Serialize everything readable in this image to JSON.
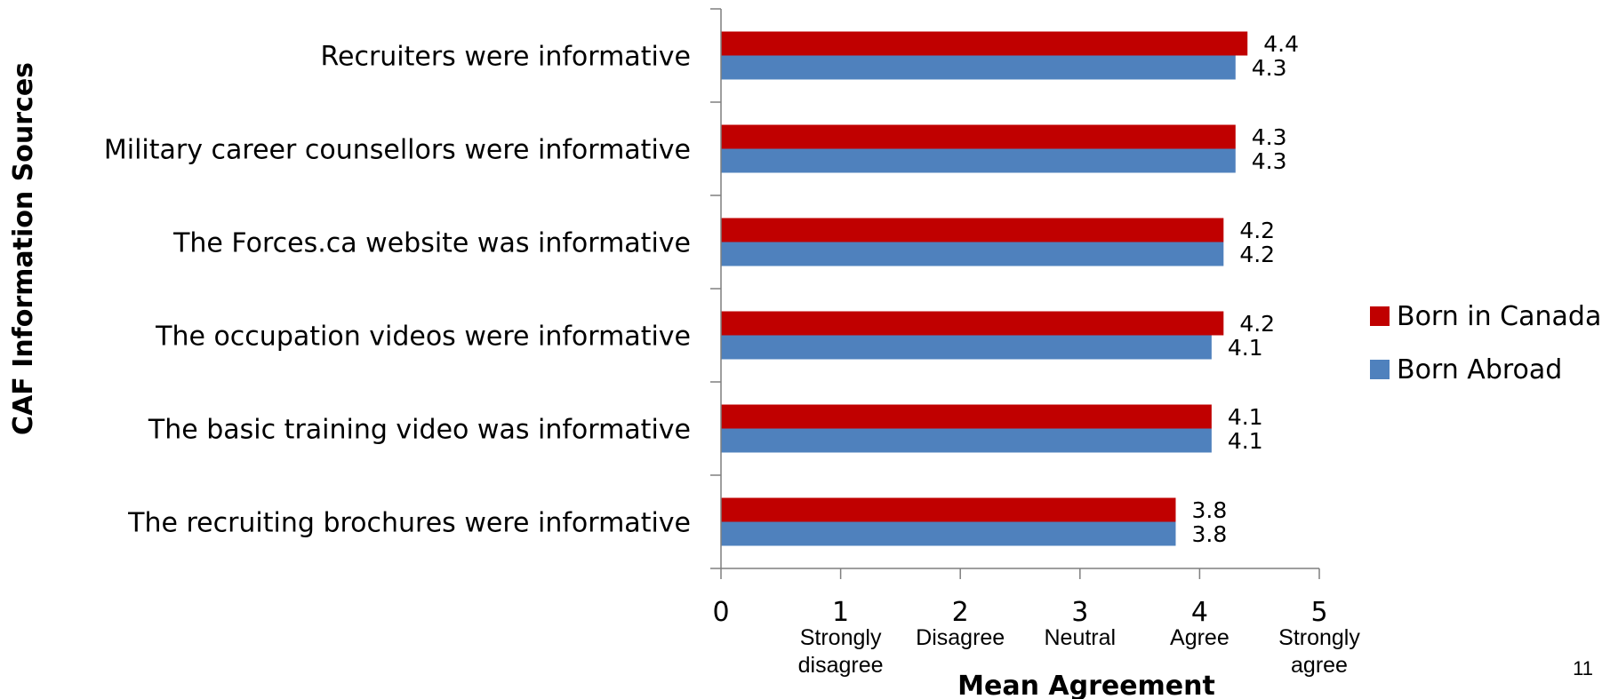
{
  "chart_data": {
    "type": "bar",
    "orientation": "horizontal",
    "categories": [
      "Recruiters were informative",
      "Military career counsellors were informative",
      "The Forces.ca website was informative",
      "The occupation videos were informative",
      "The basic training video was informative",
      "The recruiting brochures were informative"
    ],
    "series": [
      {
        "name": "Born in Canada",
        "color": "#c00000",
        "values": [
          4.4,
          4.3,
          4.2,
          4.2,
          4.1,
          3.8
        ]
      },
      {
        "name": "Born Abroad",
        "color": "#4f81bd",
        "values": [
          4.3,
          4.3,
          4.2,
          4.1,
          4.1,
          3.8
        ]
      }
    ],
    "xlim": [
      0,
      5
    ],
    "xticks": [
      {
        "value": "0",
        "label": []
      },
      {
        "value": "1",
        "label": [
          "Strongly",
          "disagree"
        ]
      },
      {
        "value": "2",
        "label": [
          "Disagree"
        ]
      },
      {
        "value": "3",
        "label": [
          "Neutral"
        ]
      },
      {
        "value": "4",
        "label": [
          "Agree"
        ]
      },
      {
        "value": "5",
        "label": [
          "Strongly",
          "agree"
        ]
      }
    ],
    "xlabel": "Mean Agreement",
    "ylabel": "CAF Information Sources",
    "legend_position": "right",
    "grid": false
  },
  "page_number": "11"
}
